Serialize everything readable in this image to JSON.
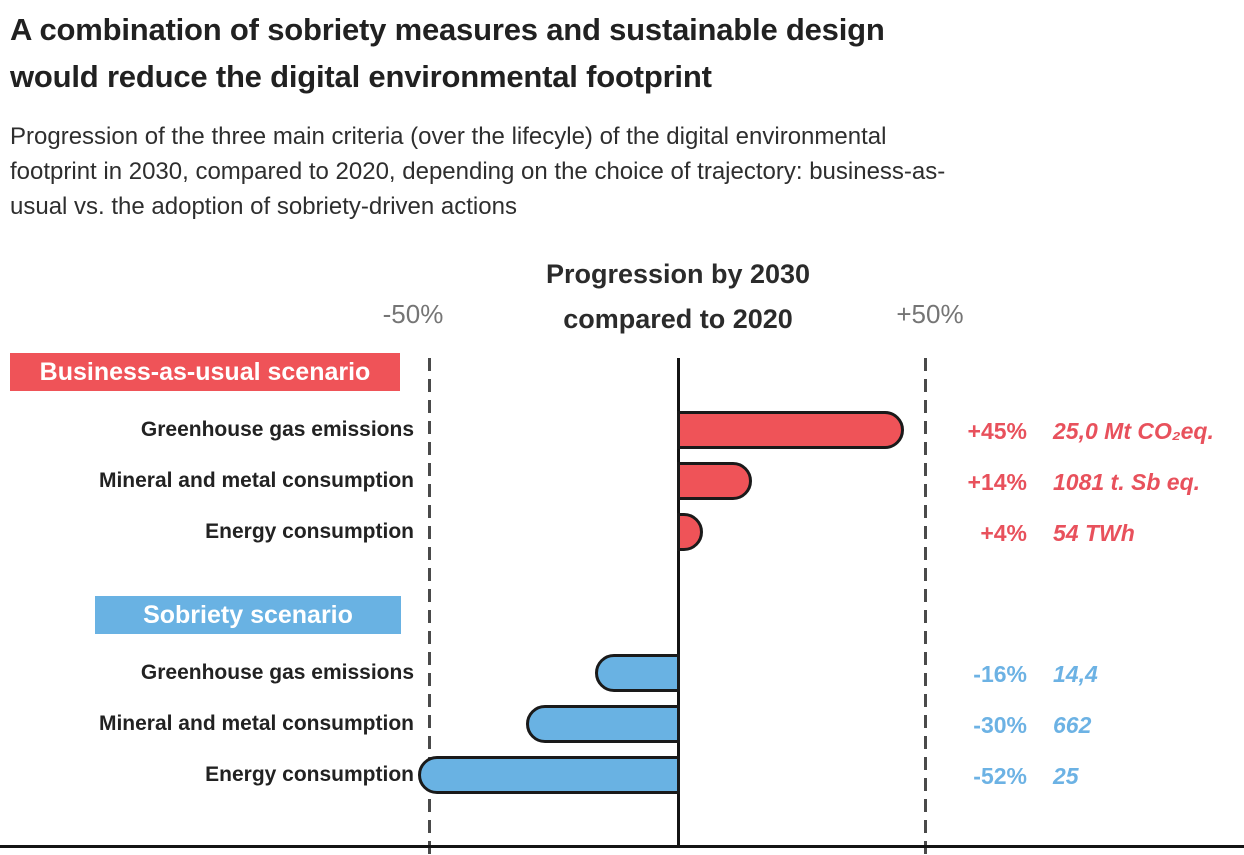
{
  "title_line1": "A combination of sobriety measures and sustainable design",
  "title_line2": "would reduce the digital environmental footprint",
  "subtitle_lines": {
    "l1": "Progression of the three main criteria (over the lifecyle) of the digital environmental",
    "l2": "footprint in 2030, compared to 2020, depending on the choice of trajectory: business-as-",
    "l3": "usual vs. the adoption of sobriety-driven actions"
  },
  "chart_data": {
    "type": "bar",
    "orientation": "horizontal",
    "title_line1": "Progression by 2030",
    "title_line2": "compared to 2020",
    "axis_min_label": "-50%",
    "axis_max_label": "+50%",
    "xlim": [
      -50,
      50
    ],
    "grid": "dashed vertical guides at -50% and +50%, solid vertical zero line, solid bottom baseline",
    "colors": {
      "business_bar": "#EF5358",
      "business_text": "#E8515C",
      "sobriety_bar": "#69B2E3",
      "sobriety_text": "#6CB2E4",
      "outline": "#1A1A1A"
    },
    "groups": [
      {
        "name": "Business-as-usual scenario",
        "rows": [
          {
            "label": "Greenhouse gas emissions",
            "value_pct": 45,
            "pct_label": "+45%",
            "unit_label": "25,0 Mt CO₂eq."
          },
          {
            "label": "Mineral and metal consumption",
            "value_pct": 14,
            "pct_label": "+14%",
            "unit_label": "1081 t. Sb eq."
          },
          {
            "label": "Energy consumption",
            "value_pct": 4,
            "pct_label": "+4%",
            "unit_label": "54 TWh"
          }
        ]
      },
      {
        "name": "Sobriety scenario",
        "rows": [
          {
            "label": "Greenhouse gas emissions",
            "value_pct": -16,
            "pct_label": "-16%",
            "unit_label": "14,4"
          },
          {
            "label": "Mineral and metal consumption",
            "value_pct": -30,
            "pct_label": "-30%",
            "unit_label": "662"
          },
          {
            "label": "Energy consumption",
            "value_pct": -52,
            "pct_label": "-52%",
            "unit_label": "25"
          }
        ]
      }
    ]
  }
}
